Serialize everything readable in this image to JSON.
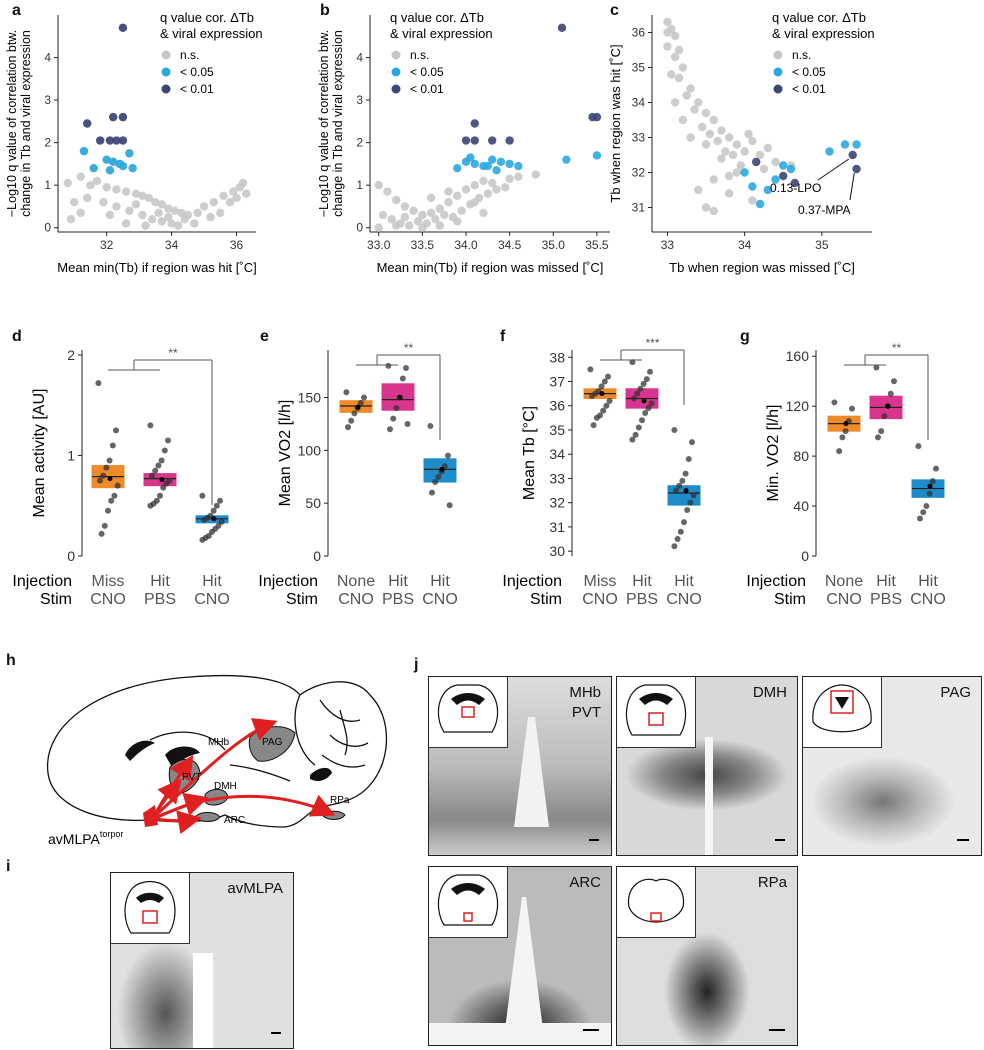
{
  "panels": {
    "a": "a",
    "b": "b",
    "c": "c",
    "d": "d",
    "e": "e",
    "f": "f",
    "g": "g",
    "h": "h",
    "i": "i",
    "j": "j"
  },
  "legend": {
    "title1": "q value cor. ΔTb",
    "title2": "& viral expression",
    "ns": "n.s.",
    "lt05": "< 0.05",
    "lt01": "< 0.01",
    "colors": {
      "ns": "#c8c8c8",
      "lt05": "#2aa8df",
      "lt01": "#3b4577"
    }
  },
  "colors": {
    "orange": "#ef8a2a",
    "magenta": "#d9348e",
    "blue": "#1d8cc9"
  },
  "chart_data": [
    {
      "id": "a",
      "type": "scatter",
      "xlabel": "Mean min(Tb) if region was hit [˚C]",
      "ylabel1": "−Log10 q value of correlation btw.",
      "ylabel2": "change in Tb and viral expression",
      "xlim": [
        30.5,
        36.6
      ],
      "ylim": [
        -0.1,
        5.0
      ],
      "xticks": [
        32,
        34,
        36
      ],
      "yticks": [
        0,
        1,
        2,
        3,
        4
      ],
      "points": [
        [
          32.5,
          4.7
        ],
        [
          31.4,
          2.45
        ],
        [
          32.2,
          2.6
        ],
        [
          32.5,
          2.6
        ],
        [
          31.8,
          2.05
        ],
        [
          32.1,
          2.05
        ],
        [
          32.3,
          2.05
        ],
        [
          32.5,
          2.05
        ],
        [
          31.3,
          1.8
        ],
        [
          32.7,
          1.75
        ],
        [
          32.0,
          1.6
        ],
        [
          32.2,
          1.55
        ],
        [
          32.4,
          1.5
        ],
        [
          32.5,
          1.45
        ],
        [
          31.6,
          1.4
        ],
        [
          32.1,
          1.35
        ],
        [
          32.8,
          1.4
        ],
        [
          31.2,
          1.2
        ],
        [
          31.7,
          1.1
        ],
        [
          30.8,
          1.05
        ],
        [
          31.5,
          1.0
        ],
        [
          32.0,
          0.95
        ],
        [
          32.3,
          0.9
        ],
        [
          32.6,
          0.85
        ],
        [
          32.9,
          0.8
        ],
        [
          33.1,
          0.75
        ],
        [
          33.3,
          0.7
        ],
        [
          33.5,
          0.6
        ],
        [
          33.7,
          0.55
        ],
        [
          33.9,
          0.45
        ],
        [
          34.1,
          0.4
        ],
        [
          34.3,
          0.35
        ],
        [
          34.5,
          0.3
        ],
        [
          34.8,
          0.35
        ],
        [
          35.0,
          0.5
        ],
        [
          35.3,
          0.6
        ],
        [
          35.6,
          0.75
        ],
        [
          35.9,
          0.85
        ],
        [
          36.1,
          0.95
        ],
        [
          36.2,
          1.05
        ],
        [
          36.0,
          0.7
        ],
        [
          31.0,
          0.6
        ],
        [
          31.4,
          0.7
        ],
        [
          31.9,
          0.6
        ],
        [
          32.3,
          0.5
        ],
        [
          32.7,
          0.4
        ],
        [
          33.1,
          0.3
        ],
        [
          33.4,
          0.2
        ],
        [
          33.7,
          0.15
        ],
        [
          34.0,
          0.1
        ],
        [
          34.4,
          0.2
        ],
        [
          34.7,
          0.1
        ],
        [
          33.2,
          0.05
        ],
        [
          32.6,
          0.1
        ],
        [
          33.9,
          0.25
        ],
        [
          34.2,
          0.05
        ],
        [
          35.2,
          0.25
        ],
        [
          35.5,
          0.35
        ],
        [
          31.2,
          0.35
        ],
        [
          32.9,
          0.55
        ],
        [
          33.6,
          0.35
        ],
        [
          32.1,
          0.3
        ],
        [
          30.9,
          0.2
        ],
        [
          35.8,
          0.6
        ],
        [
          36.3,
          0.8
        ]
      ],
      "sig05": [
        [
          31.3,
          1.8
        ],
        [
          32.7,
          1.75
        ],
        [
          32.0,
          1.6
        ],
        [
          32.2,
          1.55
        ],
        [
          32.4,
          1.5
        ],
        [
          32.5,
          1.45
        ],
        [
          31.6,
          1.4
        ],
        [
          32.1,
          1.35
        ],
        [
          32.8,
          1.4
        ]
      ],
      "sig01": [
        [
          32.5,
          4.7
        ],
        [
          31.4,
          2.45
        ],
        [
          32.2,
          2.6
        ],
        [
          32.5,
          2.6
        ],
        [
          31.8,
          2.05
        ],
        [
          32.1,
          2.05
        ],
        [
          32.3,
          2.05
        ],
        [
          32.5,
          2.05
        ]
      ]
    },
    {
      "id": "b",
      "type": "scatter",
      "xlabel": "Mean min(Tb) if region was missed [˚C]",
      "ylabel1": "−Log10 q value of correlation btw.",
      "ylabel2": "change in Tb and viral expression",
      "xlim": [
        32.9,
        35.65
      ],
      "ylim": [
        -0.1,
        5.0
      ],
      "xticks": [
        33.0,
        33.5,
        34.0,
        34.5,
        35.0,
        35.5
      ],
      "yticks": [
        0,
        1,
        2,
        3,
        4
      ],
      "points": [
        [
          33.0,
          1.0
        ],
        [
          33.1,
          0.85
        ],
        [
          33.2,
          0.65
        ],
        [
          33.3,
          0.5
        ],
        [
          33.4,
          0.4
        ],
        [
          33.5,
          0.3
        ],
        [
          33.6,
          0.35
        ],
        [
          33.7,
          0.45
        ],
        [
          33.8,
          0.6
        ],
        [
          33.9,
          0.75
        ],
        [
          34.0,
          0.9
        ],
        [
          34.1,
          1.0
        ],
        [
          34.2,
          1.1
        ],
        [
          34.3,
          1.05
        ],
        [
          34.5,
          1.15
        ],
        [
          34.6,
          1.2
        ],
        [
          34.8,
          1.25
        ],
        [
          33.15,
          0.2
        ],
        [
          33.25,
          0.1
        ],
        [
          33.35,
          0.05
        ],
        [
          33.45,
          0.15
        ],
        [
          33.55,
          0.1
        ],
        [
          33.65,
          0.2
        ],
        [
          33.75,
          0.3
        ],
        [
          33.85,
          0.25
        ],
        [
          33.95,
          0.4
        ],
        [
          34.05,
          0.55
        ],
        [
          34.15,
          0.7
        ],
        [
          34.25,
          0.8
        ],
        [
          34.35,
          0.9
        ],
        [
          34.45,
          0.95
        ],
        [
          33.05,
          0.3
        ],
        [
          33.3,
          0.25
        ],
        [
          33.5,
          0.0
        ],
        [
          33.9,
          0.15
        ],
        [
          34.2,
          0.35
        ],
        [
          33.8,
          0.85
        ],
        [
          33.6,
          0.7
        ],
        [
          33.0,
          0.0
        ],
        [
          33.2,
          0.05
        ],
        [
          33.7,
          0.05
        ],
        [
          34.1,
          0.6
        ]
      ],
      "sig05": [
        [
          34.0,
          1.55
        ],
        [
          34.1,
          1.5
        ],
        [
          34.2,
          1.45
        ],
        [
          34.3,
          1.6
        ],
        [
          34.4,
          1.55
        ],
        [
          34.5,
          1.5
        ],
        [
          34.6,
          1.45
        ],
        [
          33.9,
          1.4
        ],
        [
          34.35,
          1.35
        ],
        [
          35.15,
          1.6
        ],
        [
          35.5,
          1.7
        ],
        [
          34.05,
          1.65
        ],
        [
          34.25,
          1.45
        ]
      ],
      "sig01": [
        [
          35.1,
          4.7
        ],
        [
          35.45,
          2.6
        ],
        [
          35.5,
          2.6
        ],
        [
          34.0,
          2.05
        ],
        [
          34.1,
          2.05
        ],
        [
          34.3,
          2.05
        ],
        [
          34.5,
          2.05
        ],
        [
          34.1,
          2.45
        ]
      ]
    },
    {
      "id": "c",
      "type": "scatter",
      "xlabel": "Tb when region was missed [˚C]",
      "ylabel": "Tb when region was hit [˚C]",
      "xlim": [
        32.8,
        35.65
      ],
      "ylim": [
        30.3,
        36.5
      ],
      "xticks": [
        33,
        34,
        35
      ],
      "yticks": [
        31,
        32,
        33,
        34,
        35,
        36
      ],
      "points": [
        [
          33.0,
          36.3
        ],
        [
          33.05,
          36.1
        ],
        [
          33.1,
          35.9
        ],
        [
          33.0,
          35.6
        ],
        [
          33.1,
          35.3
        ],
        [
          33.2,
          35.0
        ],
        [
          33.15,
          34.7
        ],
        [
          33.3,
          34.4
        ],
        [
          33.4,
          34.0
        ],
        [
          33.5,
          33.7
        ],
        [
          33.6,
          33.5
        ],
        [
          33.7,
          33.2
        ],
        [
          33.8,
          33.0
        ],
        [
          33.9,
          32.8
        ],
        [
          34.0,
          32.6
        ],
        [
          34.2,
          32.5
        ],
        [
          34.4,
          32.3
        ],
        [
          34.6,
          32.2
        ],
        [
          33.3,
          33.0
        ],
        [
          33.5,
          32.8
        ],
        [
          33.7,
          32.4
        ],
        [
          33.9,
          32.0
        ],
        [
          33.6,
          31.8
        ],
        [
          33.4,
          31.5
        ],
        [
          33.5,
          31.0
        ],
        [
          33.8,
          31.4
        ],
        [
          34.1,
          31.2
        ],
        [
          33.2,
          33.5
        ],
        [
          33.35,
          33.8
        ],
        [
          33.55,
          33.1
        ],
        [
          33.75,
          32.6
        ],
        [
          33.95,
          32.2
        ],
        [
          34.1,
          32.9
        ],
        [
          34.3,
          32.7
        ],
        [
          33.05,
          34.8
        ],
        [
          33.15,
          35.5
        ],
        [
          33.25,
          34.2
        ],
        [
          33.45,
          33.3
        ],
        [
          33.65,
          32.9
        ],
        [
          33.85,
          32.5
        ],
        [
          34.05,
          33.1
        ],
        [
          34.25,
          32.1
        ],
        [
          33.0,
          36.0
        ],
        [
          33.1,
          34.0
        ],
        [
          33.6,
          30.9
        ],
        [
          33.8,
          31.9
        ]
      ],
      "sig05": [
        [
          34.0,
          32.0
        ],
        [
          34.1,
          31.6
        ],
        [
          34.3,
          31.5
        ],
        [
          34.2,
          31.1
        ],
        [
          34.5,
          32.2
        ],
        [
          35.1,
          32.6
        ],
        [
          35.3,
          32.8
        ],
        [
          35.45,
          32.8
        ],
        [
          34.6,
          32.1
        ],
        [
          34.4,
          31.8
        ]
      ],
      "sig01": [
        [
          35.4,
          32.5
        ],
        [
          35.45,
          32.1
        ],
        [
          34.15,
          32.3
        ],
        [
          34.5,
          31.9
        ],
        [
          34.65,
          31.7
        ]
      ],
      "annot_lpo": "0.13-LPO",
      "annot_mpa": "0.37-MPA"
    },
    {
      "id": "d",
      "type": "box",
      "ylabel": "Mean activity [AU]",
      "ylim": [
        0,
        2.05
      ],
      "yticks": [
        0,
        1,
        2
      ],
      "categories": [
        "Miss CNO",
        "Hit PBS",
        "Hit CNO"
      ],
      "boxes": [
        {
          "q1": 0.68,
          "median": 0.79,
          "q3": 0.9,
          "mean": 0.77,
          "points": [
            1.72,
            1.25,
            1.1,
            0.95,
            0.88,
            0.8,
            0.75,
            0.7,
            0.6,
            0.55,
            0.45,
            0.3,
            0.22
          ]
        },
        {
          "q1": 0.7,
          "median": 0.77,
          "q3": 0.82,
          "mean": 0.76,
          "points": [
            1.3,
            1.15,
            1.05,
            0.95,
            0.9,
            0.85,
            0.8,
            0.75,
            0.72,
            0.68,
            0.6,
            0.55,
            0.52,
            0.5
          ]
        },
        {
          "q1": 0.33,
          "median": 0.37,
          "q3": 0.4,
          "mean": 0.37,
          "points": [
            0.6,
            0.55,
            0.5,
            0.45,
            0.4,
            0.38,
            0.36,
            0.34,
            0.3,
            0.27,
            0.24,
            0.2,
            0.18,
            0.16
          ]
        }
      ],
      "sig": "**",
      "row1_label": "Injection",
      "row2_label": "Stim",
      "row1": [
        "Miss",
        "Hit",
        "Hit"
      ],
      "row2": [
        "CNO",
        "PBS",
        "CNO"
      ]
    },
    {
      "id": "e",
      "type": "box",
      "ylabel": "Mean VO2 [l/h]",
      "ylim": [
        0,
        195
      ],
      "yticks": [
        0,
        50,
        100,
        150
      ],
      "categories": [
        "None CNO",
        "Hit PBS",
        "Hit CNO"
      ],
      "boxes": [
        {
          "q1": 136,
          "median": 142,
          "q3": 147,
          "mean": 141,
          "points": [
            155,
            150,
            145,
            140,
            135,
            128,
            122
          ]
        },
        {
          "q1": 138,
          "median": 148,
          "q3": 163,
          "mean": 150,
          "points": [
            180,
            178,
            168,
            150,
            140,
            130,
            120,
            125
          ]
        },
        {
          "q1": 70,
          "median": 82,
          "q3": 92,
          "mean": 82,
          "points": [
            123,
            95,
            85,
            80,
            75,
            70,
            60,
            48
          ]
        }
      ],
      "sig": "**",
      "row1_label": "Injection",
      "row2_label": "Stim",
      "row1": [
        "None",
        "Hit",
        "Hit"
      ],
      "row2": [
        "CNO",
        "PBS",
        "CNO"
      ]
    },
    {
      "id": "f",
      "type": "box",
      "ylabel": "Mean Tb [°C]",
      "ylim": [
        29.8,
        38.3
      ],
      "yticks": [
        30,
        31,
        32,
        33,
        34,
        35,
        36,
        37,
        38
      ],
      "categories": [
        "Miss CNO",
        "Hit PBS",
        "Hit CNO"
      ],
      "boxes": [
        {
          "q1": 36.3,
          "median": 36.5,
          "q3": 36.7,
          "mean": 36.5,
          "points": [
            37.5,
            37.2,
            37.0,
            36.8,
            36.6,
            36.5,
            36.4,
            36.2,
            36.0,
            35.8,
            35.6,
            35.5,
            35.2
          ]
        },
        {
          "q1": 35.9,
          "median": 36.3,
          "q3": 36.7,
          "mean": 36.2,
          "points": [
            37.8,
            37.4,
            37.1,
            36.9,
            36.7,
            36.5,
            36.3,
            36.1,
            35.9,
            35.7,
            35.4,
            35.1,
            34.8,
            34.6
          ]
        },
        {
          "q1": 31.9,
          "median": 32.4,
          "q3": 32.7,
          "mean": 32.5,
          "points": [
            35.0,
            34.5,
            33.8,
            33.2,
            32.9,
            32.7,
            32.5,
            32.3,
            32.0,
            31.7,
            31.2,
            30.8,
            30.5,
            30.2
          ]
        }
      ],
      "sig": "***",
      "row1_label": "Injection",
      "row2_label": "Stim",
      "row1": [
        "Miss",
        "Hit",
        "Hit"
      ],
      "row2": [
        "CNO",
        "PBS",
        "CNO"
      ]
    },
    {
      "id": "g",
      "type": "box",
      "ylabel": "Min. VO2 [l/h]",
      "ylim": [
        0,
        165
      ],
      "yticks": [
        0,
        40,
        80,
        120,
        160
      ],
      "categories": [
        "None CNO",
        "Hit PBS",
        "Hit CNO"
      ],
      "boxes": [
        {
          "q1": 100,
          "median": 106,
          "q3": 112,
          "mean": 106,
          "points": [
            123,
            118,
            108,
            100,
            95,
            84
          ]
        },
        {
          "q1": 110,
          "median": 119,
          "q3": 128,
          "mean": 120,
          "points": [
            151,
            140,
            130,
            120,
            112,
            100,
            95
          ]
        },
        {
          "q1": 47,
          "median": 54,
          "q3": 61,
          "mean": 56,
          "points": [
            88,
            70,
            60,
            50,
            40,
            35,
            30
          ]
        }
      ],
      "sig": "**",
      "row1_label": "Injection",
      "row2_label": "Stim",
      "row1": [
        "None",
        "Hit",
        "Hit"
      ],
      "row2": [
        "CNO",
        "PBS",
        "CNO"
      ]
    }
  ],
  "schematic": {
    "mhb": "MHb",
    "pvt": "PVT",
    "pag": "PAG",
    "dmh": "DMH",
    "rpa": "RPa",
    "arc": "ARC",
    "source": "avMLPA",
    "source_sup": "torpor"
  },
  "micro": {
    "i": "avMLPA",
    "j1a": "MHb",
    "j1b": "PVT",
    "j2": "DMH",
    "j3": "PAG",
    "j4": "ARC",
    "j5": "RPa"
  }
}
